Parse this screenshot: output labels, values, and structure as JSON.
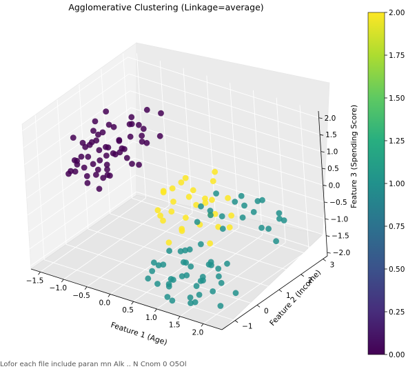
{
  "chart_data": {
    "type": "scatter",
    "projection": "3d",
    "title": "Agglomerative Clustering (Linkage=average)",
    "xlabel": "Feature 1 (Age)",
    "ylabel": "Feature 2 (Income)",
    "zlabel": "Feature 3 (Spending Score)",
    "xlim": [
      -1.7,
      2.4
    ],
    "ylim": [
      -1.6,
      3.2
    ],
    "zlim": [
      -2.1,
      2.2
    ],
    "x_ticks": [
      "−1.5",
      "−1.0",
      "−0.5",
      "0.0",
      "0.5",
      "1.0",
      "1.5",
      "2.0"
    ],
    "y_ticks": [
      "−1",
      "0",
      "1",
      "2",
      "3"
    ],
    "z_ticks": [
      "−2.0",
      "−1.5",
      "−1.0",
      "−0.5",
      "0.0",
      "0.5",
      "1.0",
      "1.5",
      "2.0"
    ],
    "grid": true,
    "colormap": "viridis",
    "colorbar": {
      "range": [
        0,
        2
      ],
      "ticks": [
        "0.00",
        "0.25",
        "0.50",
        "0.75",
        "1.00",
        "1.25",
        "1.50",
        "1.75",
        "2.00"
      ]
    },
    "cluster_colors": [
      "#440154",
      "#21918c",
      "#fde725"
    ],
    "points": [
      [
        -1.3,
        -0.1,
        0.6,
        0
      ],
      [
        -1.2,
        0.0,
        0.4,
        0
      ],
      [
        -1.0,
        -0.2,
        0.9,
        0
      ],
      [
        -1.4,
        0.3,
        0.5,
        0
      ],
      [
        -1.1,
        0.4,
        0.2,
        0
      ],
      [
        -0.9,
        0.1,
        0.7,
        0
      ],
      [
        -1.2,
        -0.4,
        0.8,
        0
      ],
      [
        -1.0,
        0.6,
        0.3,
        0
      ],
      [
        -0.8,
        -0.3,
        0.5,
        0
      ],
      [
        -1.3,
        0.2,
        1.0,
        0
      ],
      [
        -1.1,
        -0.6,
        0.6,
        0
      ],
      [
        -0.9,
        0.5,
        0.9,
        0
      ],
      [
        -1.4,
        -0.2,
        0.3,
        0
      ],
      [
        -1.2,
        0.7,
        0.6,
        0
      ],
      [
        -0.7,
        0.0,
        0.4,
        0
      ],
      [
        -1.0,
        0.2,
        1.2,
        0
      ],
      [
        -1.3,
        0.5,
        0.8,
        0
      ],
      [
        -0.8,
        0.3,
        0.2,
        0
      ],
      [
        -1.1,
        -0.1,
        1.1,
        0
      ],
      [
        -1.4,
        0.8,
        0.7,
        0
      ],
      [
        -0.9,
        -0.5,
        0.3,
        0
      ],
      [
        -1.2,
        0.1,
        0.1,
        0
      ],
      [
        -1.0,
        0.9,
        0.5,
        0
      ],
      [
        -0.7,
        0.6,
        0.8,
        0
      ],
      [
        -1.3,
        -0.5,
        0.4,
        0
      ],
      [
        -0.6,
        -0.2,
        0.7,
        0
      ],
      [
        -1.0,
        -0.7,
        0.9,
        0
      ],
      [
        -1.1,
        0.3,
        1.4,
        0
      ],
      [
        -0.8,
        0.8,
        1.0,
        0
      ],
      [
        -1.2,
        1.0,
        0.3,
        0
      ],
      [
        -0.5,
        0.0,
        1.1,
        0
      ],
      [
        -0.9,
        1.1,
        0.6,
        0
      ],
      [
        -0.6,
        0.4,
        1.3,
        0
      ],
      [
        -1.4,
        0.0,
        1.2,
        0
      ],
      [
        -0.7,
        -0.6,
        1.0,
        0
      ],
      [
        -1.0,
        0.4,
        0.0,
        0
      ],
      [
        -0.8,
        1.3,
        0.9,
        0
      ],
      [
        -0.5,
        0.7,
        0.5,
        0
      ],
      [
        -1.1,
        1.2,
        1.1,
        0
      ],
      [
        -0.6,
        1.0,
        1.5,
        0
      ],
      [
        -0.9,
        0.0,
        -0.1,
        0
      ],
      [
        -1.3,
        1.1,
        0.9,
        0
      ],
      [
        -0.4,
        0.3,
        0.9,
        0
      ],
      [
        -0.7,
        1.5,
        1.2,
        0
      ],
      [
        -1.0,
        1.4,
        0.4,
        0
      ],
      [
        -0.6,
        1.2,
        0.2,
        0
      ],
      [
        -0.8,
        -0.1,
        1.6,
        0
      ],
      [
        -0.5,
        1.4,
        0.8,
        0
      ],
      [
        -1.2,
        0.6,
        1.5,
        0
      ],
      [
        -0.9,
        1.6,
        1.3,
        0
      ],
      [
        -0.4,
        1.1,
        1.4,
        0
      ],
      [
        -0.7,
        0.2,
        1.8,
        0
      ],
      [
        -0.3,
        0.8,
        1.2,
        0
      ],
      [
        -1.1,
        0.9,
        1.7,
        0
      ],
      [
        -0.6,
        1.7,
        1.6,
        0
      ],
      [
        -0.8,
        1.8,
        0.7,
        0
      ],
      [
        -0.5,
        -0.4,
        1.5,
        0
      ],
      [
        -0.3,
        1.6,
        1.0,
        0
      ],
      [
        -1.0,
        1.7,
        1.0,
        0
      ],
      [
        -0.4,
        1.9,
        1.5,
        0
      ],
      [
        1.0,
        -0.8,
        -1.6,
        1
      ],
      [
        1.2,
        -0.4,
        -1.3,
        1
      ],
      [
        0.9,
        -1.0,
        -1.1,
        1
      ],
      [
        1.4,
        -0.6,
        -1.7,
        1
      ],
      [
        1.1,
        -1.2,
        -1.5,
        1
      ],
      [
        1.5,
        -0.2,
        -1.2,
        1
      ],
      [
        0.8,
        -0.5,
        -1.8,
        1
      ],
      [
        1.3,
        -0.9,
        -0.9,
        1
      ],
      [
        1.6,
        -0.7,
        -1.4,
        1
      ],
      [
        1.0,
        -0.2,
        -1.0,
        1
      ],
      [
        1.7,
        -1.1,
        -1.6,
        1
      ],
      [
        0.7,
        -0.8,
        -1.3,
        1
      ],
      [
        1.2,
        -1.3,
        -1.9,
        1
      ],
      [
        1.8,
        -0.4,
        -1.1,
        1
      ],
      [
        1.4,
        -1.0,
        -1.2,
        1
      ],
      [
        0.9,
        0.0,
        -1.5,
        1
      ],
      [
        1.6,
        -1.3,
        -1.8,
        1
      ],
      [
        1.1,
        -0.6,
        -0.8,
        1
      ],
      [
        1.9,
        -0.9,
        -1.5,
        1
      ],
      [
        0.6,
        -1.1,
        -1.6,
        1
      ],
      [
        1.3,
        -0.1,
        -1.7,
        1
      ],
      [
        1.7,
        -0.5,
        -0.9,
        1
      ],
      [
        0.8,
        -1.3,
        -1.2,
        1
      ],
      [
        1.5,
        -1.4,
        -1.0,
        1
      ],
      [
        2.0,
        -0.7,
        -1.3,
        1
      ],
      [
        1.0,
        -1.5,
        -1.4,
        1
      ],
      [
        1.4,
        0.1,
        -1.4,
        1
      ],
      [
        1.8,
        -1.2,
        -1.1,
        1
      ],
      [
        0.7,
        -0.3,
        -1.1,
        1
      ],
      [
        1.2,
        -1.5,
        -1.7,
        1
      ],
      [
        1.6,
        0.0,
        -1.6,
        1
      ],
      [
        2.1,
        -1.0,
        -1.8,
        1
      ],
      [
        0.5,
        -0.6,
        -1.4,
        1
      ],
      [
        1.9,
        -0.2,
        -1.0,
        1
      ],
      [
        1.3,
        -1.6,
        -1.3,
        1
      ],
      [
        0.9,
        0.2,
        -1.2,
        1
      ],
      [
        1.7,
        -1.5,
        -1.5,
        1
      ],
      [
        2.2,
        -0.5,
        -1.6,
        1
      ],
      [
        1.1,
        0.3,
        -1.0,
        1
      ],
      [
        1.5,
        -0.9,
        -2.0,
        1
      ],
      [
        1.0,
        1.0,
        -0.5,
        1
      ],
      [
        1.3,
        1.5,
        -0.2,
        1
      ],
      [
        0.8,
        0.8,
        -0.7,
        1
      ],
      [
        1.6,
        1.2,
        -0.4,
        1
      ],
      [
        1.2,
        2.0,
        -0.3,
        1
      ],
      [
        0.9,
        1.7,
        -0.9,
        1
      ],
      [
        1.5,
        1.9,
        -0.6,
        1
      ],
      [
        1.1,
        1.3,
        -1.0,
        1
      ],
      [
        1.8,
        1.6,
        -0.8,
        1
      ],
      [
        1.4,
        2.3,
        -0.5,
        1
      ],
      [
        1.0,
        2.5,
        -0.9,
        1
      ],
      [
        1.7,
        2.1,
        -1.1,
        1
      ],
      [
        0.7,
        1.9,
        -0.4,
        1
      ],
      [
        1.3,
        2.7,
        -0.7,
        1
      ],
      [
        1.9,
        2.4,
        -0.9,
        1
      ],
      [
        1.2,
        0.6,
        -0.1,
        1
      ],
      [
        1.6,
        2.8,
        -1.0,
        1
      ],
      [
        0.6,
        1.4,
        -0.6,
        1
      ],
      [
        2.0,
        1.8,
        -1.2,
        1
      ],
      [
        1.5,
        3.0,
        -1.3,
        1
      ],
      [
        -0.2,
        1.8,
        -0.6,
        2
      ],
      [
        0.0,
        2.1,
        -0.9,
        2
      ],
      [
        -0.4,
        1.5,
        -1.2,
        2
      ],
      [
        0.2,
        2.4,
        -1.0,
        2
      ],
      [
        -0.1,
        1.2,
        -0.4,
        2
      ],
      [
        0.3,
        1.9,
        -1.5,
        2
      ],
      [
        -0.3,
        2.6,
        -0.7,
        2
      ],
      [
        0.1,
        1.6,
        -0.2,
        2
      ],
      [
        0.4,
        2.2,
        -1.3,
        2
      ],
      [
        -0.5,
        2.0,
        -0.9,
        2
      ],
      [
        0.0,
        2.8,
        -1.4,
        2
      ],
      [
        0.5,
        1.4,
        -0.6,
        2
      ],
      [
        -0.2,
        2.3,
        -1.7,
        2
      ],
      [
        0.3,
        2.7,
        -0.3,
        2
      ],
      [
        -0.4,
        1.7,
        -1.6,
        2
      ],
      [
        0.6,
        2.0,
        -1.1,
        2
      ],
      [
        0.1,
        3.0,
        -0.8,
        2
      ],
      [
        -0.1,
        1.0,
        -1.0,
        2
      ],
      [
        0.4,
        2.5,
        -1.8,
        2
      ],
      [
        0.2,
        1.3,
        -1.4,
        2
      ],
      [
        0.7,
        1.7,
        -0.5,
        2
      ],
      [
        -0.3,
        2.9,
        -1.2,
        2
      ],
      [
        0.5,
        2.9,
        -1.6,
        2
      ],
      [
        0.0,
        1.1,
        -1.8,
        2
      ],
      [
        0.6,
        2.6,
        -0.9,
        2
      ],
      [
        -0.5,
        2.4,
        -1.4,
        2
      ],
      [
        0.8,
        2.2,
        -1.5,
        2
      ],
      [
        0.2,
        0.9,
        -0.7,
        2
      ],
      [
        -0.2,
        2.1,
        -2.0,
        2
      ],
      [
        0.7,
        1.5,
        -1.7,
        2
      ]
    ]
  },
  "caption": "Lofor each  file include      paran    mn Alk ..   N  Cnom 0 O5Ol"
}
